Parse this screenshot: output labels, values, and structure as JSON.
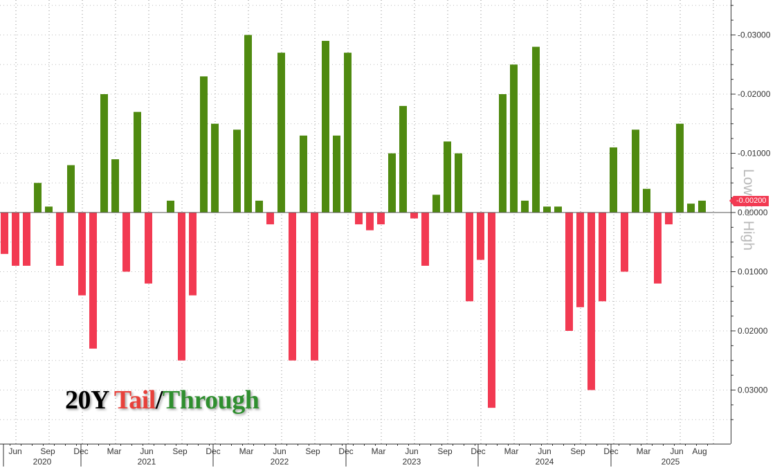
{
  "chart_data": {
    "type": "bar",
    "title_parts": [
      {
        "text": "20Y ",
        "color": "#000000"
      },
      {
        "text": "Tail",
        "color": "#e8413b"
      },
      {
        "text": "/",
        "color": "#000000"
      },
      {
        "text": "Through",
        "color": "#2f8f2f"
      }
    ],
    "ylabel": "Low <> High",
    "last_value_label": "-0.00200",
    "ylim": [
      -0.04,
      0.035
    ],
    "y_ticks": [
      {
        "value": 0.03,
        "label": "-0.03000"
      },
      {
        "value": 0.02,
        "label": "-0.02000"
      },
      {
        "value": 0.01,
        "label": "-0.01000"
      },
      {
        "value": 0.0,
        "label": "0.00000"
      },
      {
        "value": -0.01,
        "label": "0.01000"
      },
      {
        "value": -0.02,
        "label": "0.02000"
      },
      {
        "value": -0.03,
        "label": "0.03000"
      }
    ],
    "colors": {
      "through": "#4f8a10",
      "tail": "#f23a52",
      "axis": "#333333",
      "grid": "#888888",
      "tick_text": "#333333"
    },
    "x_month_labels": [
      "Jun",
      "Sep",
      "Dec",
      "Mar",
      "Jun",
      "Sep",
      "Dec",
      "Mar",
      "Jun",
      "Sep",
      "Dec",
      "Mar",
      "Jun",
      "Sep",
      "Dec",
      "Mar",
      "Jun",
      "Sep",
      "Dec",
      "Mar",
      "Jun",
      "Aug"
    ],
    "x_year_labels": [
      "2020",
      "2021",
      "2022",
      "2023",
      "2024",
      "2025"
    ],
    "values": [
      -0.007,
      -0.009,
      -0.009,
      0.005,
      0.001,
      -0.009,
      0.008,
      -0.014,
      -0.023,
      0.02,
      0.009,
      -0.01,
      0.017,
      -0.012,
      0,
      0.002,
      -0.025,
      -0.014,
      0.023,
      0.015,
      0,
      0.014,
      0.03,
      0.002,
      -0.002,
      0.027,
      -0.025,
      0.013,
      -0.025,
      0.029,
      0.013,
      0.027,
      -0.002,
      -0.003,
      -0.002,
      0.01,
      0.018,
      -0.001,
      -0.009,
      0.003,
      0.012,
      0.01,
      -0.015,
      -0.008,
      -0.033,
      0.02,
      0.025,
      0.002,
      0.028,
      0.001,
      0.001,
      -0.02,
      -0.016,
      -0.03,
      -0.015,
      0.011,
      -0.01,
      0.014,
      0.004,
      -0.012,
      -0.002,
      0.015,
      0.0015,
      0.002
    ]
  }
}
